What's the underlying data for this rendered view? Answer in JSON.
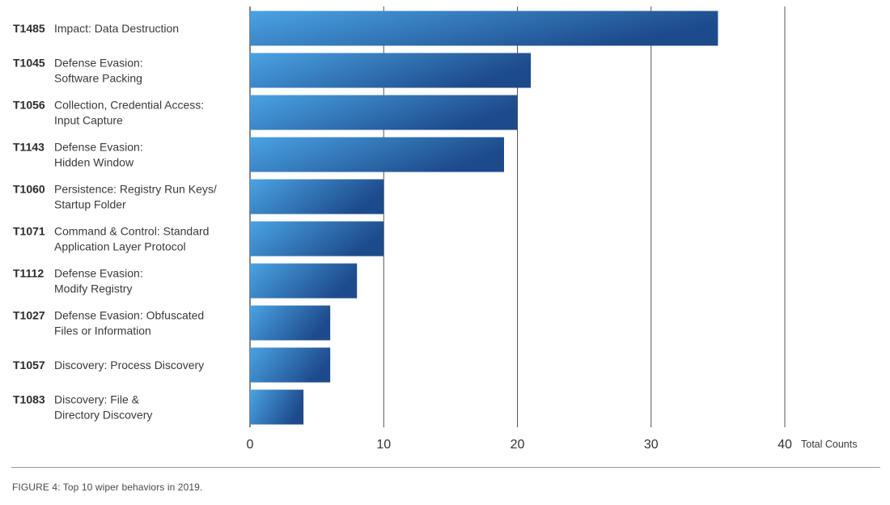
{
  "chart_data": {
    "type": "bar",
    "orientation": "horizontal",
    "categories": [
      {
        "id": "T1485",
        "label": [
          "Impact: Data Destruction"
        ]
      },
      {
        "id": "T1045",
        "label": [
          "Defense Evasion:",
          "Software Packing"
        ]
      },
      {
        "id": "T1056",
        "label": [
          "Collection, Credential Access:",
          "Input Capture"
        ]
      },
      {
        "id": "T1143",
        "label": [
          "Defense Evasion:",
          "Hidden Window"
        ]
      },
      {
        "id": "T1060",
        "label": [
          "Persistence: Registry Run Keys/",
          "Startup Folder"
        ]
      },
      {
        "id": "T1071",
        "label": [
          "Command & Control: Standard",
          "Application Layer Protocol"
        ]
      },
      {
        "id": "T1112",
        "label": [
          "Defense Evasion:",
          "Modify Registry"
        ]
      },
      {
        "id": "T1027",
        "label": [
          "Defense Evasion: Obfuscated",
          "Files or Information"
        ]
      },
      {
        "id": "T1057",
        "label": [
          "Discovery: Process Discovery"
        ]
      },
      {
        "id": "T1083",
        "label": [
          "Discovery: File &",
          "Directory Discovery"
        ]
      }
    ],
    "values": [
      35,
      21,
      20,
      19,
      10,
      10,
      8,
      6,
      6,
      4
    ],
    "xlim": [
      0,
      40
    ],
    "xticks": [
      0,
      10,
      20,
      30,
      40
    ],
    "xlabel": "Total Counts",
    "grid": true,
    "bar_gradient": [
      "#4aa3e4",
      "#1d4a8a"
    ]
  },
  "caption": "FIGURE 4: Top 10 wiper behaviors in 2019."
}
